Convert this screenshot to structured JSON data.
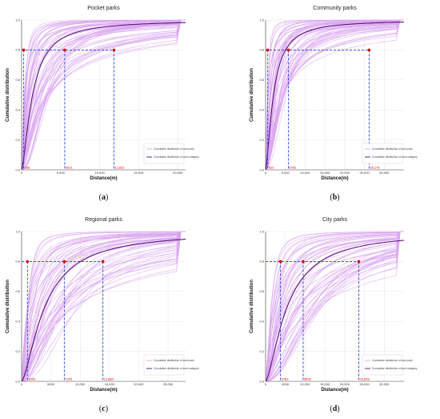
{
  "colors": {
    "park_curves": "#d9a6f0",
    "category_curve": "#5a0f7a",
    "guide": "#1f3fe0",
    "marker": "#e00000"
  },
  "chart_data": [
    {
      "type": "line",
      "title": "Pocket parks",
      "xlabel": "Distance(m)",
      "ylabel": "Cumulative distribution",
      "xlim": [
        0,
        21000
      ],
      "ylim": [
        0,
        1.0
      ],
      "xticks": [
        0,
        5000,
        10000,
        15000,
        20000
      ],
      "xtick_labels": [
        "0",
        "5,000",
        "10,000",
        "15,000",
        "20,000"
      ],
      "yticks": [
        0,
        0.2,
        0.4,
        0.6,
        0.8,
        1.0
      ],
      "ytick_labels": [
        "0.0",
        "0.2",
        "0.4",
        "0.6",
        "0.8",
        "1.0"
      ],
      "level": 0.8,
      "markers": [
        {
          "x": 268,
          "label": "268"
        },
        {
          "x": 5521,
          "label": "5521"
        },
        {
          "x": 11823,
          "label": "11,823"
        }
      ],
      "category_median_x": 1400,
      "legend": [
        "Cumulative distribution of each park",
        "Cumulative distribution of each category"
      ],
      "caption": "a"
    },
    {
      "type": "line",
      "title": "Community parks",
      "xlabel": "Distance(m)",
      "ylabel": "Cumulative distribution",
      "xlim": [
        0,
        35000
      ],
      "ylim": [
        0,
        1.0
      ],
      "xticks": [
        0,
        5000,
        10000,
        15000,
        20000,
        25000,
        30000
      ],
      "xtick_labels": [
        "0",
        "5,000",
        "10,000",
        "15,000",
        "20,000",
        "25,000",
        "30,000"
      ],
      "yticks": [
        0,
        0.2,
        0.4,
        0.6,
        0.8,
        1.0
      ],
      "ytick_labels": [
        "0.0",
        "0.2",
        "0.4",
        "0.6",
        "0.8",
        "1.0"
      ],
      "level": 0.8,
      "markers": [
        {
          "x": 533,
          "label": "533"
        },
        {
          "x": 5752,
          "label": "5752"
        },
        {
          "x": 26175,
          "label": "26,175"
        }
      ],
      "category_median_x": 2000,
      "legend": [
        "Cumulative distribution of each park",
        "Cumulative distribution of each category"
      ],
      "caption": "b"
    },
    {
      "type": "line",
      "title": "Regional parks",
      "xlabel": "Distance(m)",
      "ylabel": "Cumulative distribution",
      "xlim": [
        0,
        28000
      ],
      "ylim": [
        0,
        1.0
      ],
      "xticks": [
        0,
        5000,
        10000,
        15000,
        20000,
        25000
      ],
      "xtick_labels": [
        "0",
        "5000",
        "10,000",
        "15,000",
        "20,000",
        "25,000"
      ],
      "yticks": [
        0,
        0.2,
        0.4,
        0.6,
        0.8,
        1.0
      ],
      "ytick_labels": [
        "0.0",
        "0.2",
        "0.4",
        "0.6",
        "0.8",
        "1.0"
      ],
      "level": 0.8,
      "markers": [
        {
          "x": 1000,
          "label": "1000"
        },
        {
          "x": 7290,
          "label": "7290"
        },
        {
          "x": 13884,
          "label": "13,884"
        }
      ],
      "category_median_x": 4000,
      "legend": [
        "Cumulative distribution of each park",
        "Cumulative distribution of each category"
      ],
      "caption": "c"
    },
    {
      "type": "line",
      "title": "City parks",
      "xlabel": "Distance(m)",
      "ylabel": "Cumulative distribution",
      "xlim": [
        0,
        35000
      ],
      "ylim": [
        0,
        1.0
      ],
      "xticks": [
        0,
        5000,
        10000,
        15000,
        20000,
        25000,
        30000
      ],
      "xtick_labels": [
        "0",
        "5000",
        "10,000",
        "15,000",
        "20,000",
        "25,000",
        "30,000"
      ],
      "yticks": [
        0,
        0.2,
        0.4,
        0.6,
        0.8,
        1.0
      ],
      "ytick_labels": [
        "0.0",
        "0.2",
        "0.4",
        "0.6",
        "0.8",
        "1.0"
      ],
      "level": 0.8,
      "markers": [
        {
          "x": 3763,
          "label": "3763"
        },
        {
          "x": 9500,
          "label": "9500"
        },
        {
          "x": 23568,
          "label": "23,568"
        }
      ],
      "category_median_x": 5500,
      "legend": [
        "Cumulative distribution of each park",
        "Cumulative distribution of each category"
      ],
      "caption": "d"
    }
  ]
}
